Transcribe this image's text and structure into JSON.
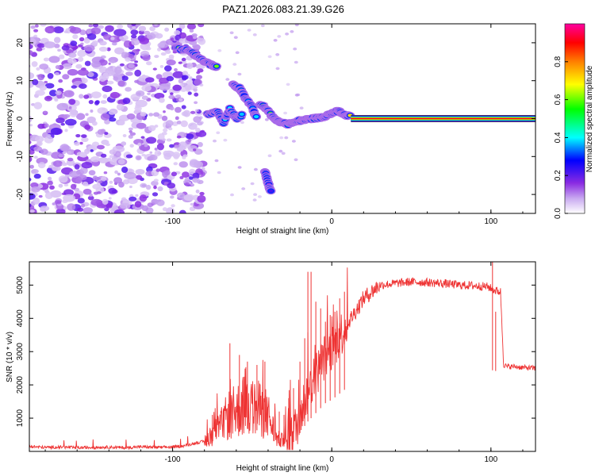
{
  "chart_data": [
    {
      "type": "heatmap",
      "title": "PAZ1.2026.083.21.39.G26",
      "xlabel": "Height of straight line (km)",
      "ylabel": "Frequency (Hz)",
      "xlim": [
        -190,
        128
      ],
      "ylim": [
        -25,
        25
      ],
      "xticks": [
        -100,
        0,
        100
      ],
      "yticks": [
        -20,
        -10,
        0,
        10,
        20
      ],
      "colorbar": {
        "label": "Normalized spectral amplitude",
        "range": [
          0,
          1
        ],
        "ticks": [
          0.0,
          0.2,
          0.4,
          0.6,
          0.8
        ],
        "tick_labels": [
          "0.0",
          "0.2",
          "0.4",
          "0.6",
          "0.8"
        ],
        "colormap": [
          "#ffffff",
          "#c8a8f0",
          "#8a2be2",
          "#0000ff",
          "#00ffff",
          "#00ff00",
          "#ffff00",
          "#ff8000",
          "#ff0000",
          "#ff00a0"
        ]
      },
      "ridge": {
        "description": "frequency trace vs height",
        "segments": [
          {
            "x": [
              -98,
              -90,
              -85,
              -80,
              -75,
              -72
            ],
            "y": [
              18.5,
              18,
              16.5,
              15,
              14,
              13.5
            ],
            "amplitude": 0.55
          },
          {
            "x": [
              -62,
              -58,
              -55,
              -50,
              -47
            ],
            "y": [
              9,
              8,
              6,
              3,
              0
            ],
            "amplitude": 0.4
          },
          {
            "x": [
              -78,
              -72,
              -68,
              -64,
              -60,
              -56
            ],
            "y": [
              1,
              2,
              -1,
              2.5,
              0,
              1
            ],
            "amplitude": 0.35
          },
          {
            "x": [
              -45,
              -40,
              -36,
              -32,
              -28,
              -24,
              -20,
              -16,
              -12,
              -8,
              -4,
              0,
              4,
              8,
              12
            ],
            "y": [
              4,
              2,
              0,
              -1,
              -1.5,
              -1,
              -0.5,
              -0.2,
              0,
              0.2,
              0.5,
              1.5,
              2,
              1,
              0.5
            ],
            "amplitude": 0.6
          },
          {
            "x": [
              12,
              40,
              70,
              100,
              128
            ],
            "y": [
              0,
              0,
              0,
              0,
              0
            ],
            "amplitude": 0.95
          }
        ],
        "faint": {
          "x": [
            -42,
            -40,
            -38
          ],
          "y": [
            -14,
            -17,
            -19.5
          ],
          "amplitude": 0.2
        }
      },
      "noise_region_x": [
        -190,
        -88
      ]
    },
    {
      "type": "line",
      "title": "",
      "xlabel": "Height of straight line (km)",
      "ylabel": "SNR (10 * v/v)",
      "xlim": [
        -190,
        128
      ],
      "ylim": [
        0,
        5700
      ],
      "xticks": [
        -100,
        0,
        100
      ],
      "yticks": [
        1000,
        2000,
        3000,
        4000,
        5000
      ],
      "color": "#ee3333",
      "series": [
        {
          "name": "SNR",
          "x": [
            -190,
            -180,
            -170,
            -160,
            -150,
            -140,
            -130,
            -120,
            -110,
            -100,
            -95,
            -90,
            -85,
            -80,
            -75,
            -70,
            -65,
            -60,
            -55,
            -50,
            -45,
            -40,
            -35,
            -30,
            -28,
            -25,
            -22,
            -20,
            -18,
            -15,
            -12,
            -10,
            -8,
            -6,
            -4,
            -2,
            0,
            4,
            8,
            12,
            16,
            20,
            25,
            30,
            40,
            50,
            60,
            70,
            80,
            90,
            98,
            100,
            102,
            104,
            106,
            108,
            110,
            115,
            120,
            128
          ],
          "y": [
            150,
            120,
            130,
            110,
            120,
            130,
            110,
            140,
            120,
            130,
            150,
            200,
            260,
            300,
            520,
            700,
            1100,
            1200,
            1400,
            1300,
            1250,
            1100,
            400,
            300,
            250,
            450,
            800,
            1100,
            1400,
            1800,
            2100,
            2300,
            2500,
            2700,
            2900,
            3000,
            3100,
            3400,
            3700,
            4000,
            4300,
            4600,
            4800,
            5000,
            5050,
            5100,
            5080,
            5050,
            5000,
            4980,
            4950,
            4900,
            4850,
            4820,
            4800,
            2600,
            2550,
            2550,
            2520,
            2500
          ]
        }
      ],
      "spikes": {
        "x": [
          -75,
          -64,
          -58,
          -53,
          -47,
          -42,
          -33,
          -30,
          -27,
          -24,
          -20,
          -17,
          -15,
          -13,
          -10,
          -7,
          -4,
          -1,
          2,
          5,
          8,
          101,
          103
        ],
        "y": [
          1100,
          3250,
          2900,
          2700,
          2600,
          2700,
          1200,
          1100,
          1600,
          1900,
          2700,
          3400,
          5400,
          5400,
          4500,
          4300,
          3900,
          4100,
          4200,
          4600,
          4800,
          5800,
          4200
        ]
      }
    }
  ]
}
